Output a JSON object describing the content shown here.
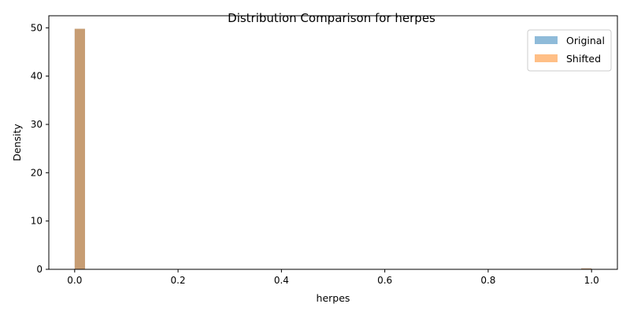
{
  "chart_data": {
    "type": "bar",
    "title": "Distribution Comparison for herpes",
    "xlabel": "herpes",
    "ylabel": "Density",
    "xlim": [
      -0.05,
      1.05
    ],
    "ylim": [
      0,
      52.5
    ],
    "xticks": [
      0.0,
      0.2,
      0.4,
      0.6,
      0.8,
      1.0
    ],
    "xtick_labels": [
      "0.0",
      "0.2",
      "0.4",
      "0.6",
      "0.8",
      "1.0"
    ],
    "yticks": [
      0,
      10,
      20,
      30,
      40,
      50
    ],
    "ytick_labels": [
      "0",
      "10",
      "20",
      "30",
      "40",
      "50"
    ],
    "bin_width": 0.02,
    "grid": false,
    "legend_position": "top-right",
    "series": [
      {
        "name": "Original",
        "color": "#1f77b4",
        "opacity": 0.5,
        "bins": [
          {
            "x0": 0.0,
            "x1": 0.02,
            "density": 49.8
          },
          {
            "x0": 0.98,
            "x1": 1.0,
            "density": 0.2
          }
        ]
      },
      {
        "name": "Shifted",
        "color": "#ff7f0e",
        "opacity": 0.5,
        "bins": [
          {
            "x0": 0.0,
            "x1": 0.02,
            "density": 49.8
          },
          {
            "x0": 0.98,
            "x1": 1.0,
            "density": 0.2
          }
        ]
      }
    ]
  }
}
